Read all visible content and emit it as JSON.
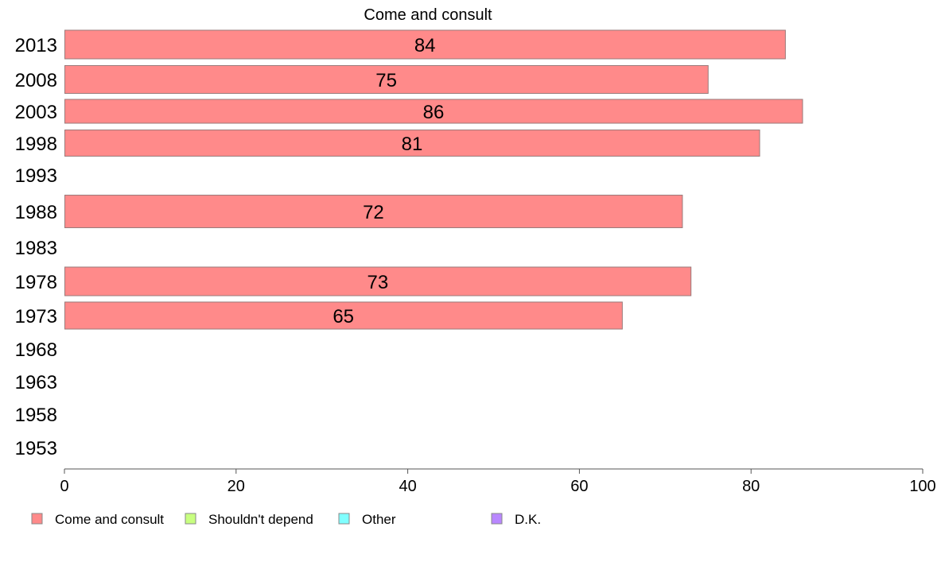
{
  "chart_data": {
    "type": "bar",
    "orientation": "horizontal",
    "title": "Come and consult",
    "categories": [
      "2013",
      "2008",
      "2003",
      "1998",
      "1993",
      "1988",
      "1983",
      "1978",
      "1973",
      "1968",
      "1963",
      "1958",
      "1953"
    ],
    "series": [
      {
        "name": "Come and consult",
        "color": "#ff8a8a",
        "values": [
          84,
          75,
          86,
          81,
          null,
          72,
          null,
          73,
          65,
          null,
          null,
          null,
          null
        ]
      }
    ],
    "data_labels": [
      "84",
      "75",
      "86",
      "81",
      "",
      "72",
      "",
      "73",
      "65",
      "",
      "",
      "",
      ""
    ],
    "xlim": [
      0,
      100
    ],
    "x_ticks": [
      0,
      20,
      40,
      60,
      80,
      100
    ],
    "grid": false,
    "legend": {
      "placement": "bottom",
      "entries": [
        {
          "label": "Come and consult",
          "color": "#ff8a8a"
        },
        {
          "label": "Shouldn't depend",
          "color": "#c8ff80"
        },
        {
          "label": "Other",
          "color": "#80ffff"
        },
        {
          "label": "D.K.",
          "color": "#b987ff"
        }
      ]
    }
  }
}
